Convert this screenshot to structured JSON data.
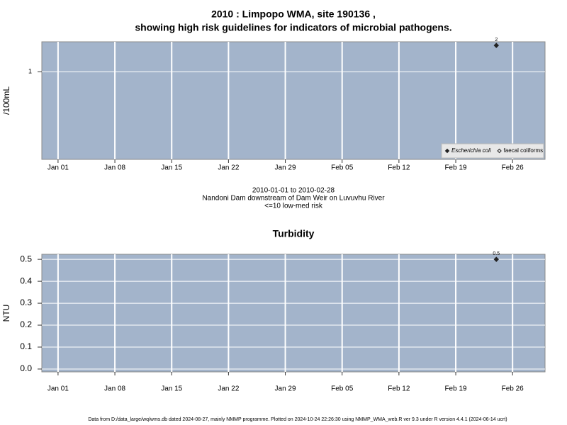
{
  "chart_data": [
    {
      "type": "scatter",
      "title": [
        "2010 : Limpopo WMA, site 190136 ,",
        "showing high risk guidelines for indicators of microbial pathogens."
      ],
      "ylabel": "/100mL",
      "log_y": true,
      "ylim": [
        0.1,
        2.2
      ],
      "yticks": [
        1
      ],
      "xlim": [
        "2009-12-30",
        "2010-03-02"
      ],
      "xticks": [
        {
          "value": "2010-01-01",
          "label": "Jan 01"
        },
        {
          "value": "2010-01-08",
          "label": "Jan 08"
        },
        {
          "value": "2010-01-15",
          "label": "Jan 15"
        },
        {
          "value": "2010-01-22",
          "label": "Jan 22"
        },
        {
          "value": "2010-01-29",
          "label": "Jan 29"
        },
        {
          "value": "2010-02-05",
          "label": "Feb 05"
        },
        {
          "value": "2010-02-12",
          "label": "Feb 12"
        },
        {
          "value": "2010-02-19",
          "label": "Feb 19"
        },
        {
          "value": "2010-02-26",
          "label": "Feb 26"
        }
      ],
      "grid": true,
      "legend": "lower right",
      "series": [
        {
          "name": "Escherichia coli",
          "color": "#222222",
          "fill": "#222222",
          "italic": true,
          "x": [
            "2010-02-24"
          ],
          "values": [
            2
          ]
        },
        {
          "name": "faecal coliforms",
          "color": "#222222",
          "fill": "none",
          "italic": false,
          "x": [],
          "values": []
        }
      ],
      "caption": [
        "2010-01-01 to 2010-02-28",
        "Nandoni Dam downstream of Dam Weir on Luvuvhu River",
        "<=10 low-med risk"
      ]
    },
    {
      "type": "scatter",
      "title": "Turbidity",
      "ylabel": "NTU",
      "log_y": false,
      "ylim": [
        -0.013,
        0.523
      ],
      "yticks": [
        {
          "value": 0,
          "label": "0.0"
        },
        0.1,
        0.2,
        0.3,
        0.4,
        0.5
      ],
      "xlim": [
        "2009-12-30",
        "2010-03-02"
      ],
      "xticks": [
        {
          "value": "2010-01-01",
          "label": "Jan 01"
        },
        {
          "value": "2010-01-08",
          "label": "Jan 08"
        },
        {
          "value": "2010-01-15",
          "label": "Jan 15"
        },
        {
          "value": "2010-01-22",
          "label": "Jan 22"
        },
        {
          "value": "2010-01-29",
          "label": "Jan 29"
        },
        {
          "value": "2010-02-05",
          "label": "Feb 05"
        },
        {
          "value": "2010-02-12",
          "label": "Feb 12"
        },
        {
          "value": "2010-02-19",
          "label": "Feb 19"
        },
        {
          "value": "2010-02-26",
          "label": "Feb 26"
        }
      ],
      "grid": true,
      "series": [
        {
          "name": "Turbidity",
          "color": "#222222",
          "fill": "#222222",
          "x": [
            "2010-02-24"
          ],
          "values": [
            0.5
          ]
        }
      ]
    }
  ],
  "footer": "Data from D:/data_large/wq/wms.db dated 2024-08-27, mainly NMMP programme. Plotted on 2024-10-24 22:26:30 using NMMP_WMA_web.R ver 9.3 under R version 4.4.1 (2024-06-14 ucrt)"
}
